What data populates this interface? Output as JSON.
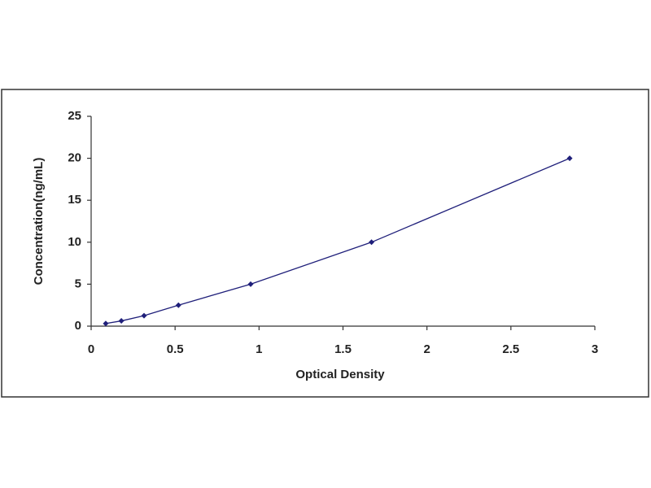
{
  "chart_data": {
    "type": "line",
    "x_label": "Optical Density",
    "y_label": "Concentration(ng/mL)",
    "x": [
      0.087,
      0.18,
      0.315,
      0.52,
      0.95,
      1.67,
      2.85
    ],
    "values": [
      0.3125,
      0.625,
      1.25,
      2.5,
      5,
      10,
      20
    ],
    "color": "#1f1f7a",
    "xlim": [
      0,
      3
    ],
    "xticks": [
      0,
      0.5,
      1,
      1.5,
      2,
      2.5,
      3
    ],
    "ylim": [
      0,
      25
    ],
    "yticks": [
      0,
      5,
      10,
      15,
      20,
      25
    ],
    "grid": false
  }
}
